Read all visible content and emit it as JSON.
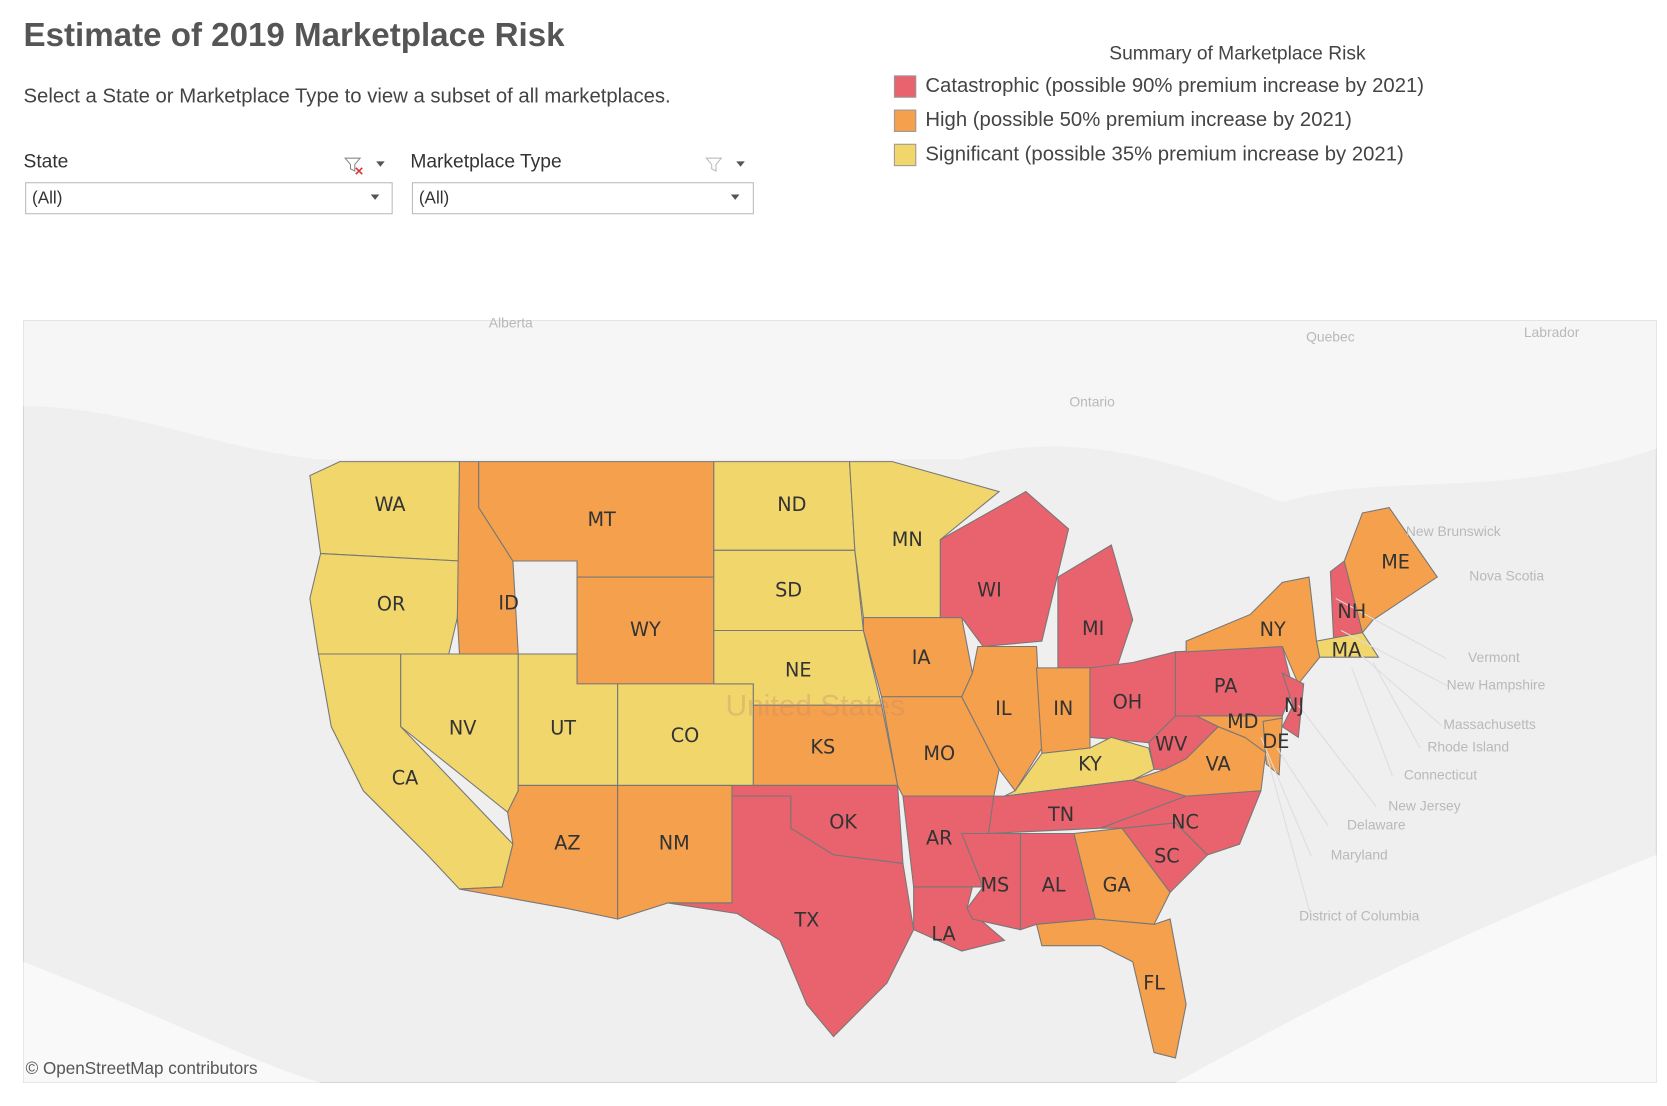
{
  "title": "Estimate of 2019 Marketplace Risk",
  "subtitle": "Select a State or Marketplace Type to view a subset of all marketplaces.",
  "filters": [
    {
      "label": "State",
      "value": "(All)"
    },
    {
      "label": "Marketplace Type",
      "value": "(All)"
    }
  ],
  "legend": {
    "title": "Summary of Marketplace Risk",
    "items": [
      {
        "label": "Catastrophic (possible 90% premium increase by 2021)",
        "color": "#e8636d"
      },
      {
        "label": "High (possible 50% premium increase by 2021)",
        "color": "#f5a04c"
      },
      {
        "label": "Significant (possible 35% premium increase by 2021)",
        "color": "#f1d66c"
      }
    ]
  },
  "map": {
    "place_labels": [
      "Alberta",
      "Quebec",
      "Labrador",
      "Ontario",
      "New Brunswick",
      "Nova Scotia",
      "Vermont",
      "New Hampshire",
      "Massachusetts",
      "Rhode Island",
      "Connecticut",
      "New Jersey",
      "Delaware",
      "Maryland",
      "District of Columbia",
      "United States"
    ],
    "states": [
      {
        "label": "WA",
        "risk": 2
      },
      {
        "label": "OR",
        "risk": 2
      },
      {
        "label": "CA",
        "risk": 2
      },
      {
        "label": "NV",
        "risk": 2
      },
      {
        "label": "ID",
        "risk": 1
      },
      {
        "label": "MT",
        "risk": 1
      },
      {
        "label": "WY",
        "risk": 1
      },
      {
        "label": "UT",
        "risk": 2
      },
      {
        "label": "CO",
        "risk": 2
      },
      {
        "label": "AZ",
        "risk": 1
      },
      {
        "label": "NM",
        "risk": 1
      },
      {
        "label": "ND",
        "risk": 2
      },
      {
        "label": "SD",
        "risk": 2
      },
      {
        "label": "NE",
        "risk": 2
      },
      {
        "label": "KS",
        "risk": 1
      },
      {
        "label": "OK",
        "risk": 0
      },
      {
        "label": "TX",
        "risk": 0
      },
      {
        "label": "MN",
        "risk": 2
      },
      {
        "label": "IA",
        "risk": 1
      },
      {
        "label": "MO",
        "risk": 1
      },
      {
        "label": "AR",
        "risk": 0
      },
      {
        "label": "LA",
        "risk": 0
      },
      {
        "label": "WI",
        "risk": 0
      },
      {
        "label": "IL",
        "risk": 1
      },
      {
        "label": "MI",
        "risk": 0
      },
      {
        "label": "IN",
        "risk": 1
      },
      {
        "label": "OH",
        "risk": 0
      },
      {
        "label": "KY",
        "risk": 2
      },
      {
        "label": "TN",
        "risk": 0
      },
      {
        "label": "MS",
        "risk": 0
      },
      {
        "label": "AL",
        "risk": 0
      },
      {
        "label": "GA",
        "risk": 1
      },
      {
        "label": "FL",
        "risk": 1
      },
      {
        "label": "SC",
        "risk": 0
      },
      {
        "label": "NC",
        "risk": 0
      },
      {
        "label": "VA",
        "risk": 1
      },
      {
        "label": "WV",
        "risk": 0
      },
      {
        "label": "PA",
        "risk": 0
      },
      {
        "label": "NY",
        "risk": 1
      },
      {
        "label": "NJ",
        "risk": 0
      },
      {
        "label": "MD",
        "risk": 1
      },
      {
        "label": "DE",
        "risk": 1
      },
      {
        "label": "NH",
        "risk": 0
      },
      {
        "label": "ME",
        "risk": 1
      },
      {
        "label": "MA",
        "risk": 2
      }
    ]
  },
  "attribution": "© OpenStreetMap contributors"
}
